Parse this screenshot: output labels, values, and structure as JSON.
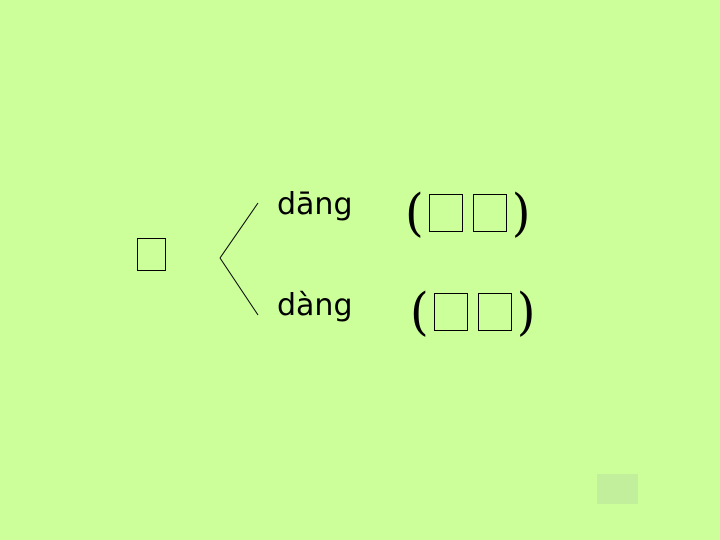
{
  "main_character": "",
  "readings": [
    {
      "pinyin": "dāng",
      "open_paren": "(",
      "close_paren": ")"
    },
    {
      "pinyin": "dàng",
      "open_paren": "(",
      "close_paren": ")"
    }
  ],
  "colors": {
    "background": "#ccff99",
    "nav_button": "#c2ef9b"
  }
}
